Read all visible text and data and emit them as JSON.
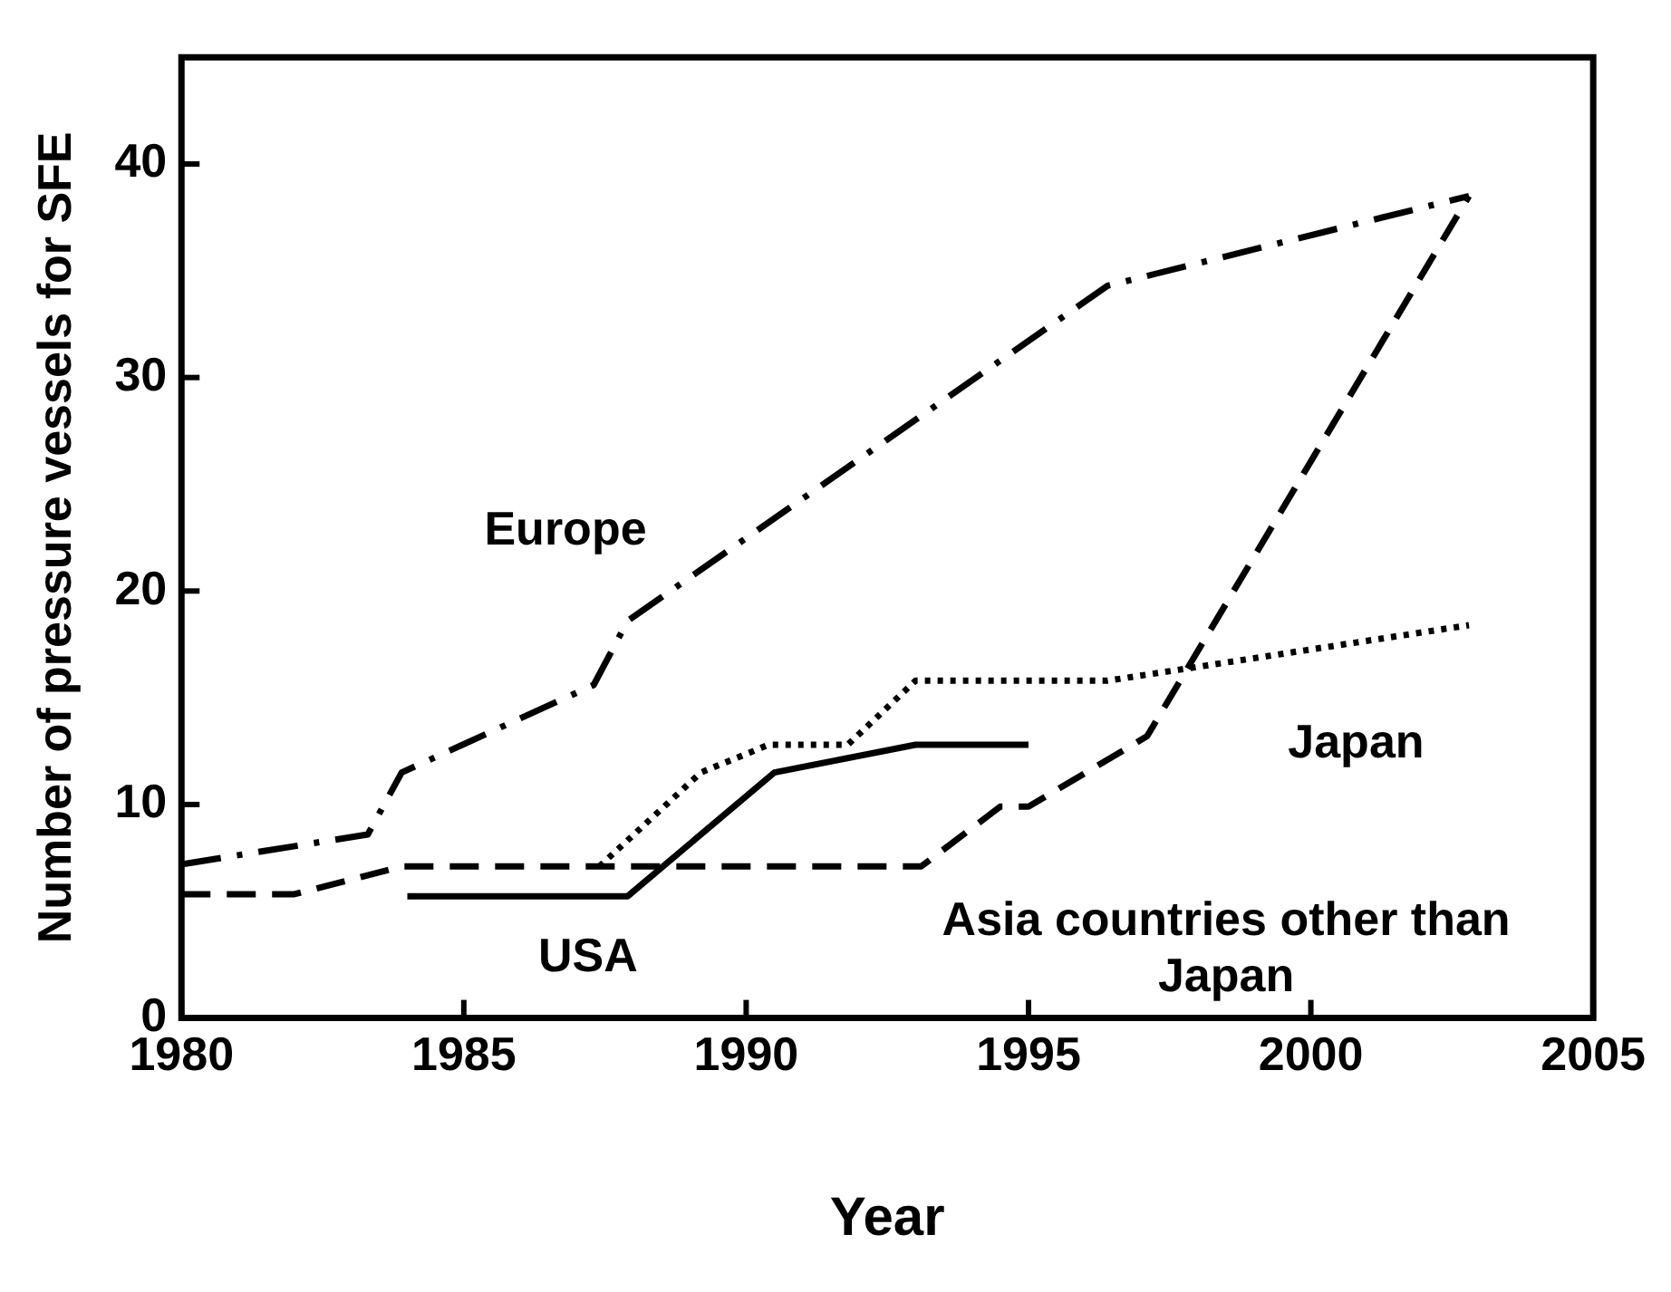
{
  "chart_data": {
    "type": "line",
    "xlabel": "Year",
    "ylabel": "Number of pressure vessels for SFE",
    "xlim": [
      1980,
      2005
    ],
    "xticks": [
      1980,
      1985,
      1990,
      1995,
      2000,
      2005
    ],
    "ylim": [
      0,
      45
    ],
    "yticks": [
      0,
      10,
      20,
      30,
      40
    ],
    "grid": false,
    "legend": false,
    "marker": "none",
    "series": [
      {
        "name": "Europe",
        "color": "#000000",
        "line_style": "dashdot",
        "x": [
          1980,
          1983.3,
          1983.9,
          1987.3,
          1987.9,
          1996.4,
          2002.8
        ],
        "values": [
          7.2,
          8.6,
          11.5,
          15.6,
          18.6,
          34.3,
          38.5
        ]
      },
      {
        "name": "Asia countries other than Japan",
        "color": "#000000",
        "line_style": "dashed",
        "x": [
          1980,
          1982,
          1983.9,
          1993.1,
          1994.5,
          1995,
          1997.1,
          2002.8
        ],
        "values": [
          5.8,
          5.8,
          7.1,
          7.1,
          9.9,
          9.9,
          13.2,
          38.5
        ]
      },
      {
        "name": "Japan",
        "color": "#000000",
        "line_style": "dotted",
        "x": [
          1987.4,
          1989.2,
          1990.4,
          1991.8,
          1993,
          1996.4,
          2002.8
        ],
        "values": [
          7.1,
          11.5,
          12.8,
          12.8,
          15.8,
          15.8,
          18.4
        ]
      },
      {
        "name": "USA",
        "color": "#000000",
        "line_style": "solid",
        "x": [
          1984,
          1987.9,
          1990.5,
          1993,
          1995
        ],
        "values": [
          5.7,
          5.7,
          11.5,
          12.8,
          12.8
        ]
      }
    ]
  }
}
